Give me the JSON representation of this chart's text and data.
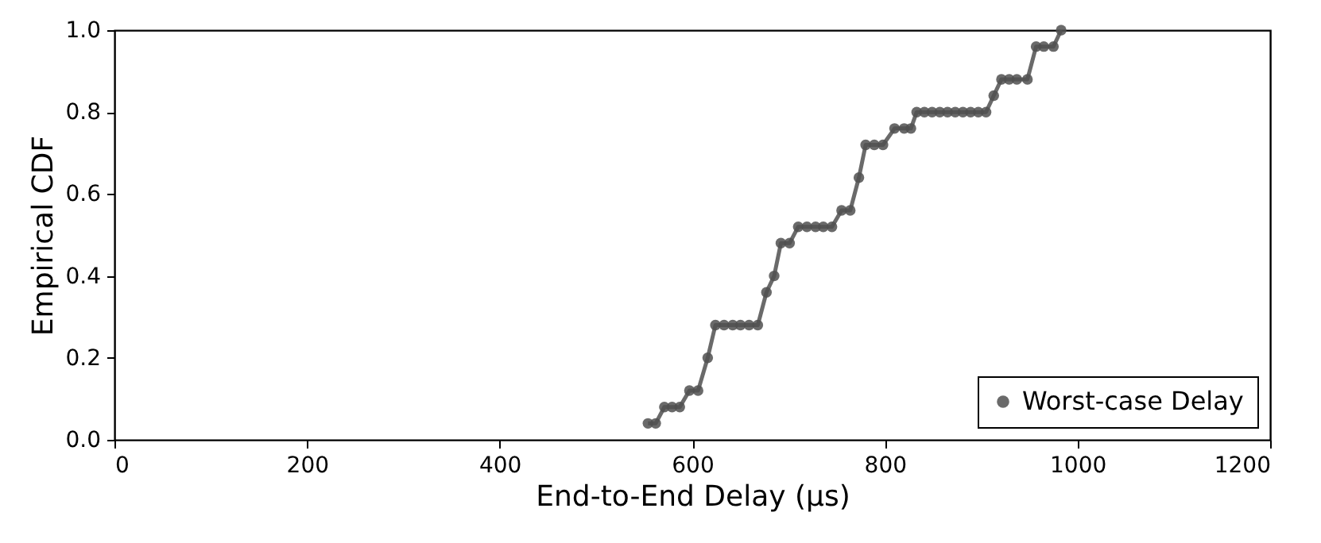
{
  "chart_data": {
    "type": "line",
    "xlabel": "End-to-End Delay (μs)",
    "ylabel": "Empirical CDF",
    "x": [
      554,
      562,
      571,
      579,
      587,
      597,
      606,
      616,
      624,
      633,
      642,
      650,
      659,
      668,
      677,
      685,
      692,
      701,
      710,
      719,
      728,
      736,
      745,
      755,
      764,
      773,
      780,
      789,
      798,
      810,
      820,
      827,
      833,
      841,
      849,
      857,
      865,
      873,
      881,
      889,
      897,
      905,
      913,
      921,
      929,
      937,
      948,
      957,
      965,
      975,
      983
    ],
    "series": [
      {
        "name": "Worst-case Delay",
        "color": "#505050",
        "values": [
          0.04,
          0.04,
          0.08,
          0.08,
          0.08,
          0.12,
          0.12,
          0.2,
          0.28,
          0.28,
          0.28,
          0.28,
          0.28,
          0.28,
          0.36,
          0.4,
          0.48,
          0.48,
          0.52,
          0.52,
          0.52,
          0.52,
          0.52,
          0.56,
          0.56,
          0.64,
          0.72,
          0.72,
          0.72,
          0.76,
          0.76,
          0.76,
          0.8,
          0.8,
          0.8,
          0.8,
          0.8,
          0.8,
          0.8,
          0.8,
          0.8,
          0.8,
          0.84,
          0.88,
          0.88,
          0.88,
          0.88,
          0.96,
          0.96,
          0.96,
          1.0
        ]
      }
    ],
    "xlim": [
      0,
      1200
    ],
    "xticks": [
      0,
      200,
      400,
      600,
      800,
      1000,
      1200
    ],
    "ylim": [
      0,
      1
    ],
    "yticks": [
      {
        "value": 0,
        "label": "0.0"
      },
      {
        "value": 0.2,
        "label": "0.2"
      },
      {
        "value": 0.4,
        "label": "0.4"
      },
      {
        "value": 0.6,
        "label": "0.6"
      },
      {
        "value": 0.8,
        "label": "0.8"
      },
      {
        "value": 1,
        "label": "1.0"
      }
    ],
    "grid": false,
    "legend": "bottom right",
    "marker": "circle",
    "line_style": "solid"
  }
}
